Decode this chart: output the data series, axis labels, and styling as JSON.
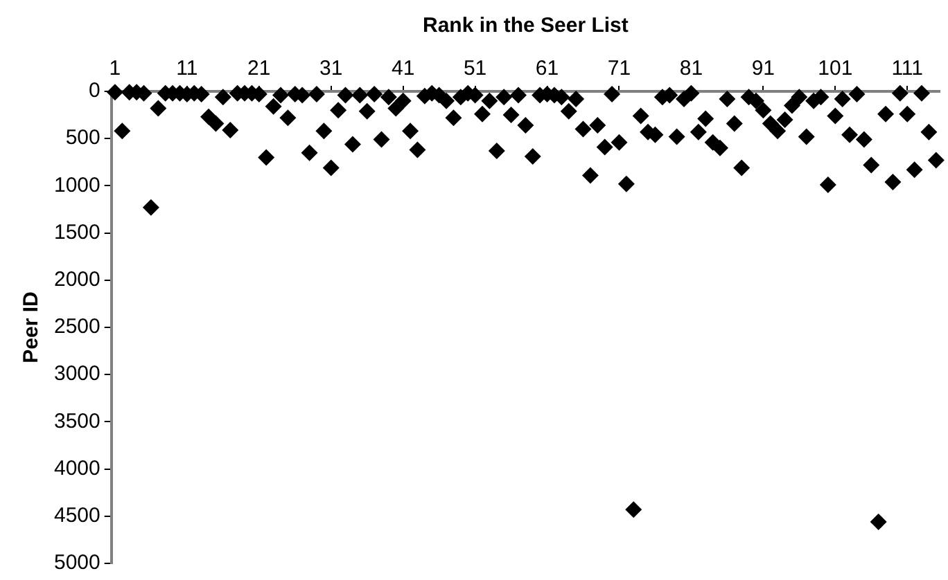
{
  "chart_data": {
    "type": "scatter",
    "xlabel": "Rank in the Seer List",
    "ylabel": "Peer ID",
    "color": "#000000",
    "marker": "diamond",
    "grid": false,
    "legend": false,
    "x": [
      1,
      2,
      3,
      4,
      5,
      6,
      7,
      8,
      9,
      10,
      11,
      12,
      13,
      14,
      15,
      16,
      17,
      18,
      19,
      20,
      21,
      22,
      23,
      24,
      25,
      26,
      27,
      28,
      29,
      30,
      31,
      32,
      33,
      34,
      35,
      36,
      37,
      38,
      39,
      40,
      41,
      42,
      43,
      44,
      45,
      46,
      47,
      48,
      49,
      50,
      51,
      52,
      53,
      54,
      55,
      56,
      57,
      58,
      59,
      60,
      61,
      62,
      63,
      64,
      65,
      66,
      67,
      68,
      69,
      70,
      71,
      72,
      73,
      74,
      75,
      76,
      77,
      78,
      79,
      80,
      81,
      82,
      83,
      84,
      85,
      86,
      87,
      88,
      89,
      90,
      91,
      92,
      93,
      94,
      95,
      96,
      97,
      98,
      99,
      100,
      101,
      102,
      103,
      104,
      105,
      106,
      107,
      108,
      109,
      110,
      111,
      112,
      113,
      114,
      115
    ],
    "values": [
      10,
      420,
      10,
      10,
      20,
      1230,
      180,
      20,
      20,
      20,
      30,
      20,
      30,
      270,
      340,
      60,
      410,
      20,
      20,
      20,
      30,
      700,
      160,
      40,
      280,
      30,
      40,
      650,
      30,
      420,
      810,
      200,
      40,
      560,
      40,
      210,
      30,
      510,
      60,
      180,
      100,
      420,
      620,
      50,
      20,
      40,
      100,
      280,
      60,
      20,
      40,
      240,
      100,
      630,
      60,
      250,
      40,
      360,
      690,
      40,
      30,
      40,
      60,
      210,
      80,
      400,
      890,
      360,
      590,
      30,
      540,
      980,
      4430,
      260,
      430,
      460,
      60,
      40,
      480,
      80,
      20,
      430,
      290,
      540,
      600,
      80,
      340,
      810,
      60,
      100,
      200,
      340,
      420,
      300,
      150,
      60,
      480,
      100,
      60,
      990,
      260,
      80,
      460,
      30,
      510,
      780,
      4560,
      240,
      960,
      20,
      240,
      830,
      20,
      430,
      730
    ],
    "xlim": [
      0.5,
      115.5
    ],
    "xticks": [
      1,
      11,
      21,
      31,
      41,
      51,
      61,
      71,
      81,
      91,
      101,
      111
    ],
    "ylim": [
      5000,
      0
    ],
    "yticks": [
      0,
      500,
      1000,
      1500,
      2000,
      2500,
      3000,
      3500,
      4000,
      4500,
      5000
    ]
  }
}
